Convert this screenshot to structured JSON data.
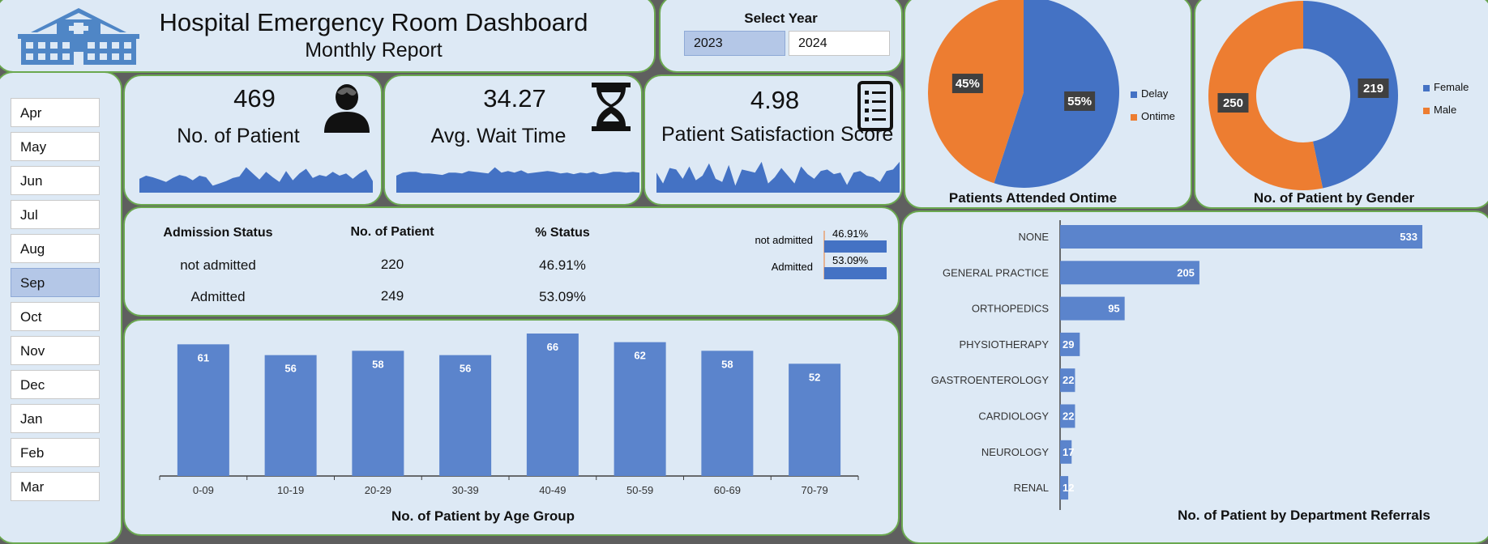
{
  "header": {
    "title": "Hospital Emergency Room Dashboard",
    "subtitle": "Monthly Report",
    "logo_icon": "hospital-building-icon"
  },
  "year_selector": {
    "label": "Select Year",
    "options": [
      "2023",
      "2024"
    ],
    "selected": "2023"
  },
  "months": {
    "items": [
      "Apr",
      "May",
      "Jun",
      "Jul",
      "Aug",
      "Sep",
      "Oct",
      "Nov",
      "Dec",
      "Jan",
      "Feb",
      "Mar"
    ],
    "selected": "Sep"
  },
  "kpis": [
    {
      "value": "469",
      "label": "No. of Patient",
      "icon": "patient-icon",
      "sparkline": [
        18,
        22,
        20,
        17,
        14,
        19,
        23,
        21,
        16,
        22,
        20,
        9,
        12,
        15,
        19,
        21,
        33,
        25,
        17,
        27,
        20,
        14,
        28,
        16,
        25,
        31,
        19,
        23,
        21,
        27,
        22,
        25,
        18,
        25,
        30,
        15
      ]
    },
    {
      "value": "34.27",
      "label": "Avg. Wait Time",
      "icon": "hourglass-icon",
      "sparkline": [
        22,
        26,
        27,
        27,
        25,
        25,
        24,
        23,
        26,
        26,
        25,
        28,
        27,
        26,
        25,
        33,
        26,
        28,
        26,
        29,
        25,
        26,
        27,
        28,
        27,
        25,
        26,
        24,
        26,
        25,
        27,
        24,
        25,
        27,
        27,
        26,
        27,
        26
      ]
    },
    {
      "value": "4.98",
      "label": "Patient Satisfaction Score",
      "icon": "checklist-icon",
      "sparkline": [
        26,
        12,
        32,
        30,
        18,
        34,
        16,
        22,
        38,
        18,
        14,
        36,
        9,
        30,
        28,
        26,
        40,
        12,
        20,
        32,
        22,
        12,
        34,
        24,
        18,
        28,
        30,
        24,
        26,
        10,
        26,
        28,
        22,
        20,
        14,
        28,
        30,
        40
      ]
    }
  ],
  "admission": {
    "headers": [
      "Admission Status",
      "No. of Patient",
      "% Status"
    ],
    "rows": [
      {
        "status": "not admitted",
        "count": "220",
        "pct": "46.91%"
      },
      {
        "status": "Admitted",
        "count": "249",
        "pct": "53.09%"
      }
    ],
    "mini_chart": {
      "labels": [
        "not admitted",
        "Admitted"
      ],
      "pct_labels": [
        "46.91%",
        "53.09%"
      ],
      "values": [
        220,
        249
      ],
      "max": 249
    }
  },
  "chart_data": [
    {
      "type": "bar",
      "title": "No. of Patient by Age Group",
      "categories": [
        "0-09",
        "10-19",
        "20-29",
        "30-39",
        "40-49",
        "50-59",
        "60-69",
        "70-79"
      ],
      "values": [
        61,
        56,
        58,
        56,
        66,
        62,
        58,
        52
      ],
      "ylim": [
        0,
        66
      ]
    },
    {
      "type": "pie",
      "title": "Patients Attended Ontime",
      "labels": [
        "Delay",
        "Ontime"
      ],
      "values": [
        55,
        45
      ],
      "value_labels": [
        "55%",
        "45%"
      ],
      "colors": [
        "#4472c4",
        "#ed7d31"
      ],
      "legend": "right"
    },
    {
      "type": "pie",
      "title": "No. of Patient by Gender",
      "donut": true,
      "labels": [
        "Female",
        "Male"
      ],
      "values": [
        219,
        250
      ],
      "value_labels": [
        "219",
        "250"
      ],
      "colors": [
        "#4472c4",
        "#ed7d31"
      ],
      "legend": "right"
    },
    {
      "type": "bar",
      "orientation": "horizontal",
      "title": "No. of Patient by Department Referrals",
      "categories": [
        "NONE",
        "GENERAL PRACTICE",
        "ORTHOPEDICS",
        "PHYSIOTHERAPY",
        "GASTROENTEROLOGY",
        "CARDIOLOGY",
        "NEUROLOGY",
        "RENAL"
      ],
      "values": [
        533,
        205,
        95,
        29,
        22,
        22,
        17,
        12
      ]
    }
  ],
  "colors": {
    "panel_bg": "#dde9f5",
    "border": "#6aa84f",
    "bar_blue": "#4472c4",
    "bar_blue_light": "#5b84cc",
    "orange": "#ed7d31",
    "selected": "#b4c7e7"
  }
}
